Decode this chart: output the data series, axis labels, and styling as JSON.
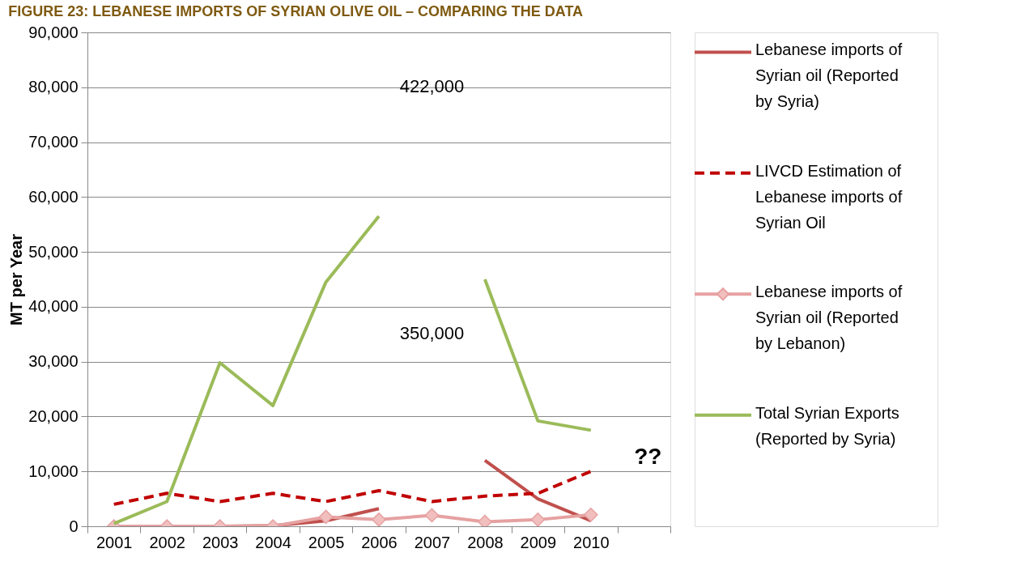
{
  "chart_data": {
    "type": "line",
    "title": "FIGURE 23: LEBANESE IMPORTS OF SYRIAN OLIVE OIL – COMPARING THE DATA",
    "ylabel": "MT per Year",
    "categories": [
      "2001",
      "2002",
      "2003",
      "2004",
      "2005",
      "2006",
      "2007",
      "2008",
      "2009",
      "2010",
      null
    ],
    "series": [
      {
        "name": "Lebanese imports of Syrian oil (Reported by Syria)",
        "color": "#c0504d",
        "values": [
          0,
          0,
          0,
          100,
          1000,
          3200,
          null,
          12000,
          5000,
          1000,
          null
        ]
      },
      {
        "name": "LIVCD Estimation of Lebanese imports of Syrian Oil",
        "color": "#c00000",
        "line_style": "dashed",
        "values": [
          4000,
          6000,
          4500,
          6000,
          4500,
          6500,
          4500,
          5500,
          6000,
          10000,
          null
        ]
      },
      {
        "name": "Lebanese imports of Syrian oil (Reported by Lebanon)",
        "color": "#e6a1a1",
        "marker": "diamond",
        "values": [
          0,
          0,
          0,
          0,
          1700,
          1200,
          2000,
          800,
          1200,
          2100,
          null
        ]
      },
      {
        "name": "Total Syrian Exports (Reported by Syria)",
        "color": "#9bbb59",
        "values": [
          500,
          4500,
          29800,
          22000,
          44500,
          56500,
          null,
          45000,
          19200,
          17500,
          null
        ]
      }
    ],
    "ylim": [
      0,
      90000
    ],
    "yticks": [
      0,
      {
        "value": 10000,
        "label": "10,000"
      },
      {
        "value": 20000,
        "label": "20,000"
      },
      {
        "value": 30000,
        "label": "30,000"
      },
      {
        "value": 40000,
        "label": "40,000"
      },
      {
        "value": 50000,
        "label": "50,000"
      },
      {
        "value": 60000,
        "label": "60,000"
      },
      {
        "value": 70000,
        "label": "70,000"
      },
      {
        "value": 80000,
        "label": "80,000"
      },
      {
        "value": 90000,
        "label": "90,000"
      }
    ],
    "grid": "y",
    "legend": "right",
    "marker": "none",
    "line_style": "solid",
    "annotations": [
      "422,000",
      "350,000",
      "??"
    ]
  }
}
